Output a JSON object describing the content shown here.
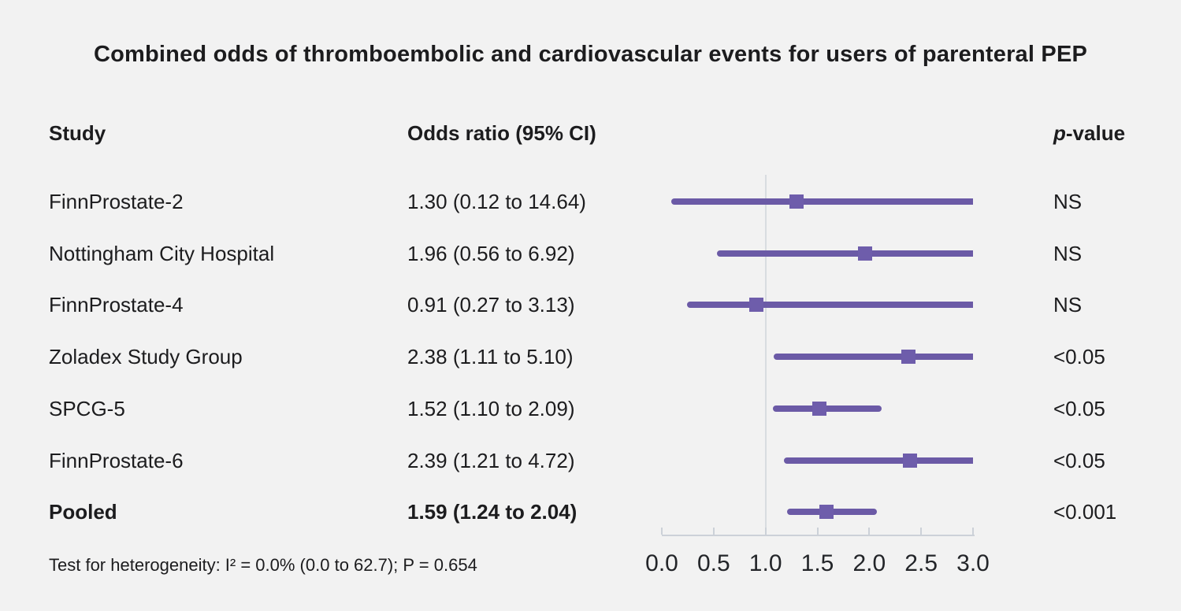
{
  "title": "Combined odds of thromboembolic and cardiovascular events for users of parenteral PEP",
  "columns": {
    "study": "Study",
    "odds_ratio": "Odds ratio (95% CI)",
    "p_value_italic": "p",
    "p_value_rest": "-value"
  },
  "footnote": "Test for heterogeneity: I² = 0.0% (0.0 to 62.7); P = 0.654",
  "colors": {
    "background": "#f2f2f2",
    "text": "#1c1c1e",
    "ci_line": "#6b5aa6",
    "marker": "#6e5dab",
    "axis": "#ccd1d8",
    "reference_line": "#d8dce0"
  },
  "chart_data": {
    "type": "forest",
    "title": "Combined odds of thromboembolic and cardiovascular events for users of parenteral PEP",
    "xlim": [
      0.0,
      3.0
    ],
    "reference_value": 1.0,
    "x_ticks": [
      {
        "value": 0.0,
        "label": "0.0"
      },
      {
        "value": 0.5,
        "label": "0.5"
      },
      {
        "value": 1.0,
        "label": "1.0"
      },
      {
        "value": 1.5,
        "label": "1.5"
      },
      {
        "value": 2.0,
        "label": "2.0"
      },
      {
        "value": 2.5,
        "label": "2.5"
      },
      {
        "value": 3.0,
        "label": "3.0"
      }
    ],
    "rows": [
      {
        "study": "FinnProstate-2",
        "or_text": "1.30 (0.12 to 14.64)",
        "or": 1.3,
        "ci_low": 0.12,
        "ci_high": 14.64,
        "p": "NS",
        "bold": false
      },
      {
        "study": "Nottingham City Hospital",
        "or_text": "1.96 (0.56 to 6.92)",
        "or": 1.96,
        "ci_low": 0.56,
        "ci_high": 6.92,
        "p": "NS",
        "bold": false
      },
      {
        "study": "FinnProstate-4",
        "or_text": "0.91 (0.27 to 3.13)",
        "or": 0.91,
        "ci_low": 0.27,
        "ci_high": 3.13,
        "p": "NS",
        "bold": false
      },
      {
        "study": "Zoladex Study Group",
        "or_text": "2.38 (1.11 to 5.10)",
        "or": 2.38,
        "ci_low": 1.11,
        "ci_high": 5.1,
        "p": "<0.05",
        "bold": false
      },
      {
        "study": "SPCG-5",
        "or_text": "1.52 (1.10 to 2.09)",
        "or": 1.52,
        "ci_low": 1.1,
        "ci_high": 2.09,
        "p": "<0.05",
        "bold": false
      },
      {
        "study": "FinnProstate-6",
        "or_text": "2.39 (1.21 to 4.72)",
        "or": 2.39,
        "ci_low": 1.21,
        "ci_high": 4.72,
        "p": "<0.05",
        "bold": false
      },
      {
        "study": "Pooled",
        "or_text": "1.59 (1.24 to 2.04)",
        "or": 1.59,
        "ci_low": 1.24,
        "ci_high": 2.04,
        "p": "<0.001",
        "bold": true
      }
    ],
    "footnote": "Test for heterogeneity: I² = 0.0% (0.0 to 62.7); P = 0.654"
  }
}
